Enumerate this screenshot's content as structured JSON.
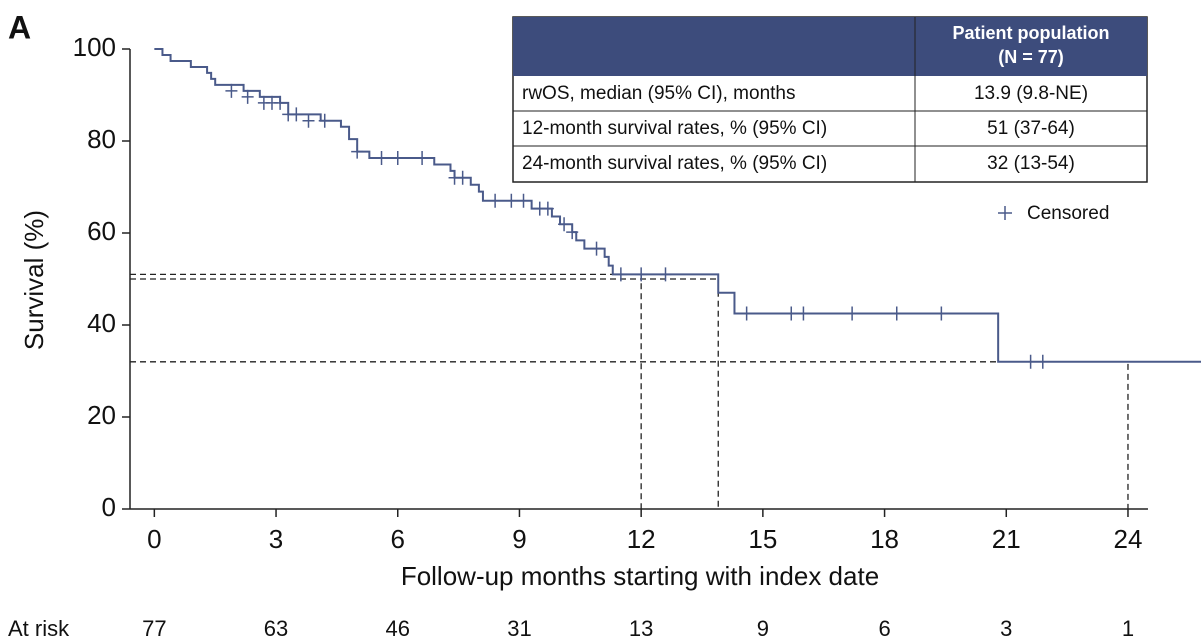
{
  "panel_label": "A",
  "chart_data": {
    "type": "km",
    "ylabel": "Survival (%)",
    "xlabel": "Follow-up months starting with index date",
    "color": "#4a5a8a",
    "xlim": [
      -0.6,
      25.8
    ],
    "ylim": [
      0,
      100
    ],
    "xticks": [
      0,
      3,
      6,
      9,
      12,
      15,
      18,
      21,
      24
    ],
    "yticks": [
      0,
      20,
      40,
      60,
      80,
      100
    ],
    "x": [
      0,
      0.2,
      0.4,
      0.9,
      1.3,
      1.4,
      1.5,
      2.2,
      2.6,
      3.1,
      3.3,
      4.1,
      4.6,
      4.8,
      5.0,
      5.3,
      6.9,
      7.3,
      7.4,
      7.8,
      8.0,
      8.1,
      9.3,
      9.8,
      10.0,
      10.3,
      10.4,
      10.6,
      11.1,
      11.2,
      11.3,
      13.9,
      14.3,
      20.8,
      25.8
    ],
    "values": [
      100,
      98.7,
      97.4,
      96.1,
      94.8,
      93.5,
      92.2,
      90.9,
      89.6,
      88.3,
      85.8,
      84.4,
      83.1,
      80.4,
      77.7,
      76.3,
      74.9,
      73.5,
      72.0,
      70.5,
      69.0,
      67.0,
      65.3,
      63.6,
      61.9,
      60.2,
      58.4,
      56.6,
      54.8,
      52.9,
      51.0,
      47.0,
      42.5,
      32.0,
      32.0
    ],
    "censored": {
      "name": "Censored",
      "x": [
        1.9,
        2.3,
        2.7,
        2.9,
        3.1,
        3.3,
        3.5,
        3.8,
        4.2,
        5.0,
        5.6,
        6.0,
        6.6,
        7.4,
        7.6,
        8.4,
        8.8,
        9.1,
        9.5,
        9.7,
        10.1,
        10.3,
        10.9,
        11.5,
        12.0,
        12.6,
        14.6,
        15.7,
        16.0,
        17.2,
        18.3,
        19.4,
        21.6,
        21.9
      ],
      "values": [
        90.9,
        89.6,
        88.3,
        88.3,
        88.3,
        85.8,
        85.8,
        84.4,
        84.4,
        77.7,
        76.3,
        76.3,
        76.3,
        72.0,
        72.0,
        67.0,
        67.0,
        67.0,
        65.3,
        65.3,
        61.9,
        60.2,
        56.6,
        51.0,
        51.0,
        51.0,
        42.5,
        42.5,
        42.5,
        42.5,
        42.5,
        42.5,
        32.0,
        32.0
      ]
    },
    "reference_lines": [
      {
        "x": 12,
        "y": 51
      },
      {
        "x": 13.9,
        "y": 50
      },
      {
        "x": 24,
        "y": 32
      }
    ],
    "at_risk": {
      "label": "At risk",
      "values": [
        77,
        63,
        46,
        31,
        13,
        9,
        6,
        3,
        1
      ]
    }
  },
  "table": {
    "header_lines": [
      "Patient population",
      "(N = 77)"
    ],
    "rows": [
      [
        "rwOS, median (95% CI), months",
        "13.9 (9.8-NE)"
      ],
      [
        "12-month survival rates, % (95% CI)",
        "51 (37-64)"
      ],
      [
        "24-month survival rates, % (95% CI)",
        "32 (13-54)"
      ]
    ]
  }
}
